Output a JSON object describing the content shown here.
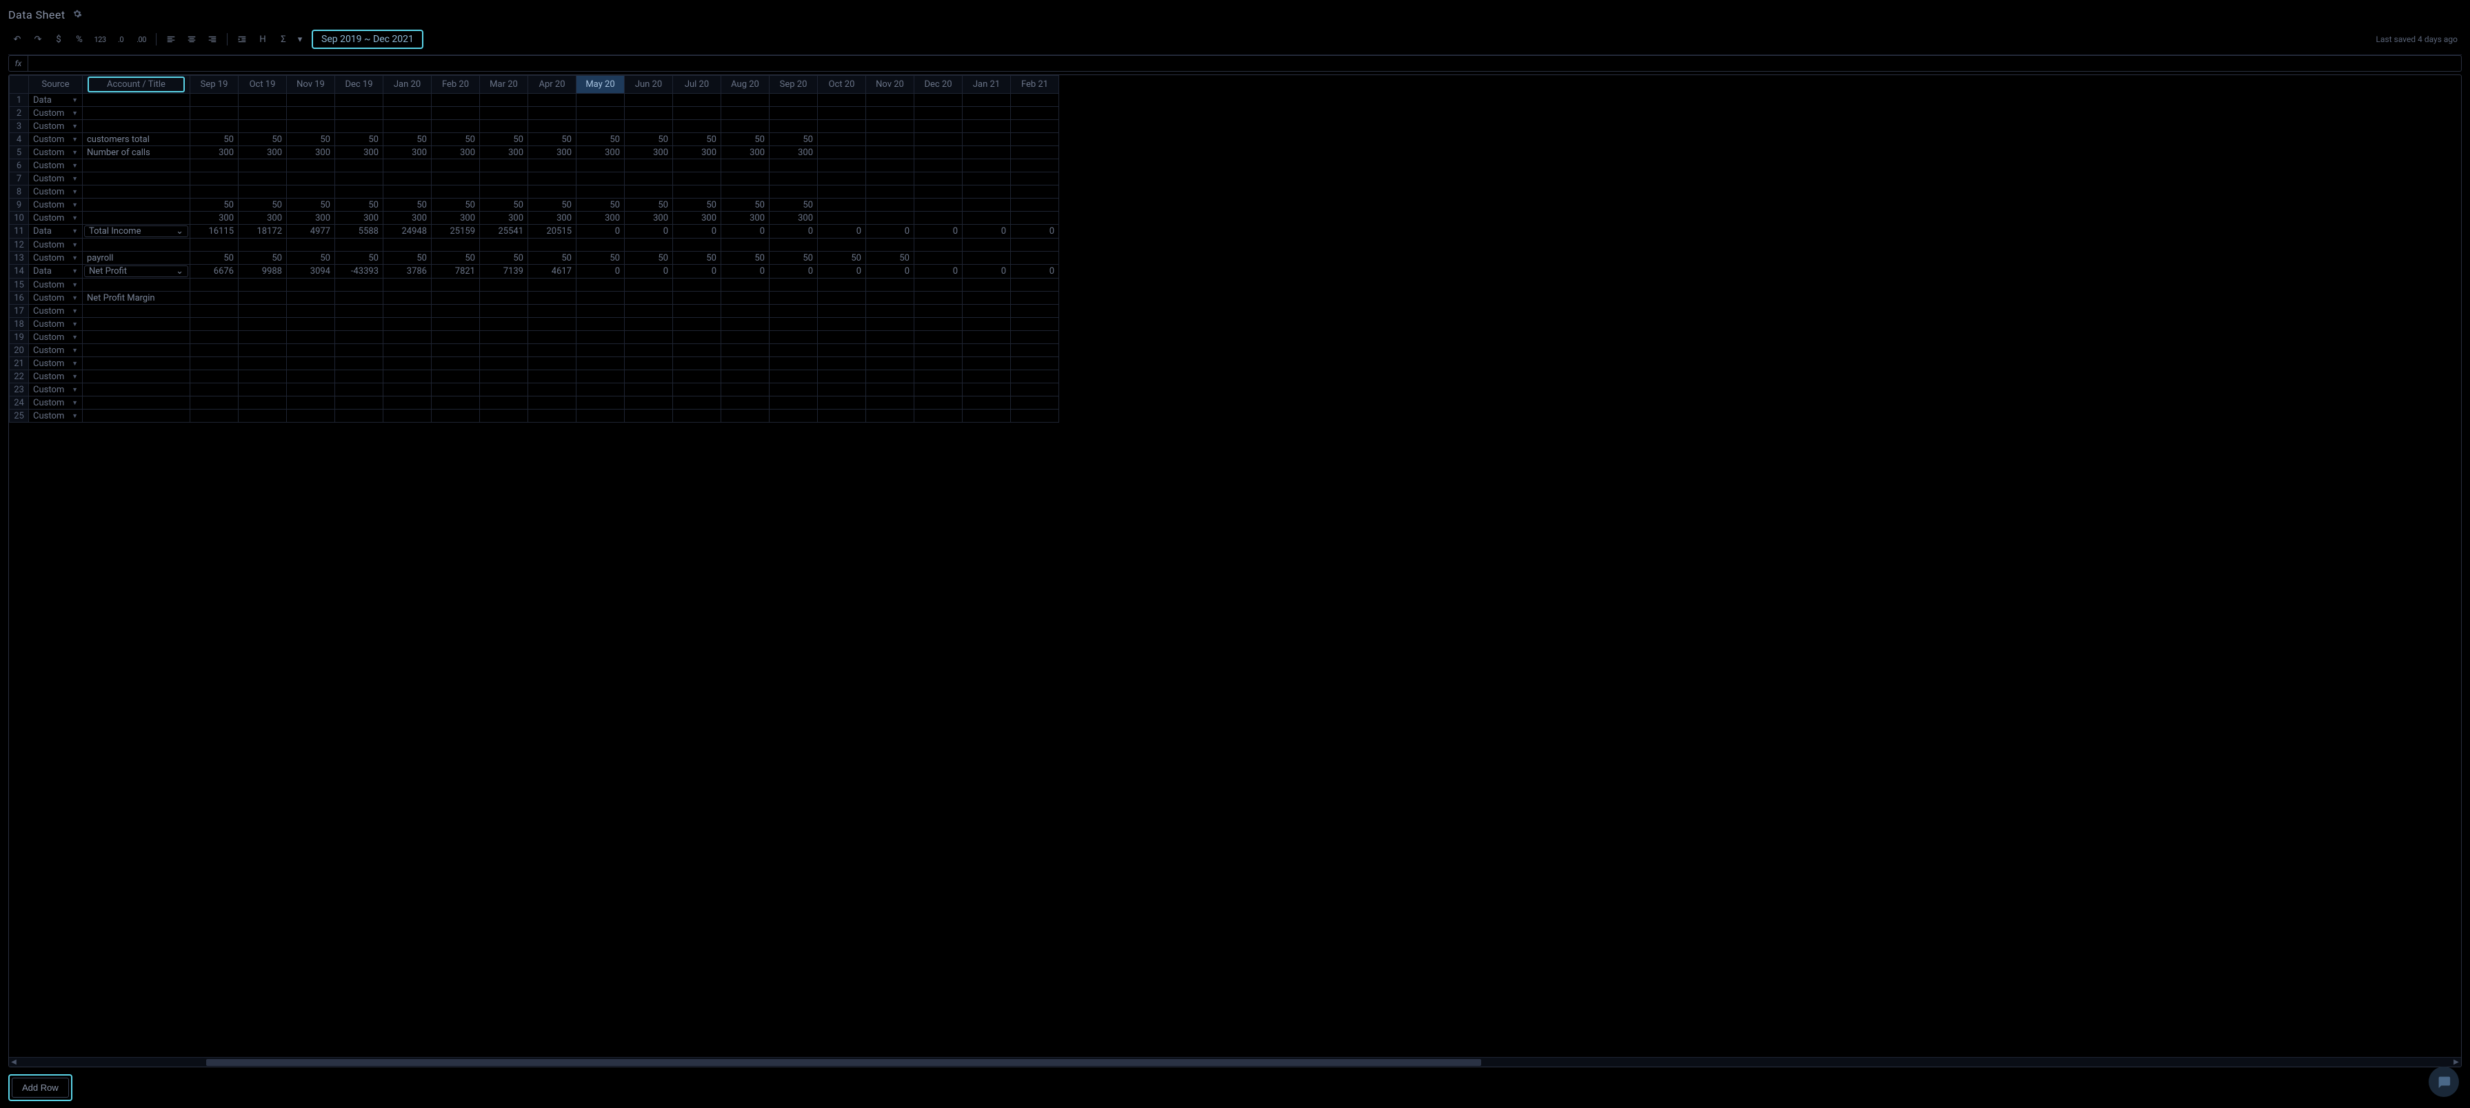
{
  "title": "Data Sheet",
  "dateRange": "Sep 2019 ~ Dec 2021",
  "lastSaved": "Last saved 4 days ago",
  "addRowLabel": "Add Row",
  "fxLabel": "fx",
  "headers": {
    "source": "Source",
    "accountTitle": "Account / Title"
  },
  "toolbar": {
    "undo": "↶",
    "redo": "↷",
    "currency": "$",
    "percent": "%",
    "num123": "123",
    "decDec": ".0",
    "incDec": ".00",
    "alignL": "≡",
    "alignC": "≡",
    "alignR": "≡",
    "indent": "⇥",
    "header": "H",
    "sum": "Σ",
    "caret": "▾"
  },
  "months": [
    "Sep 19",
    "Oct 19",
    "Nov 19",
    "Dec 19",
    "Jan 20",
    "Feb 20",
    "Mar 20",
    "Apr 20",
    "May 20",
    "Jun 20",
    "Jul 20",
    "Aug 20",
    "Sep 20",
    "Oct 20",
    "Nov 20",
    "Dec 20",
    "Jan 21",
    "Feb 21"
  ],
  "highlightedMonthIndex": 8,
  "rows": [
    {
      "n": 1,
      "source": "Data",
      "title": "",
      "dropdown": false,
      "vals": []
    },
    {
      "n": 2,
      "source": "Custom",
      "title": "",
      "dropdown": false,
      "vals": []
    },
    {
      "n": 3,
      "source": "Custom",
      "title": "",
      "dropdown": false,
      "vals": []
    },
    {
      "n": 4,
      "source": "Custom",
      "title": "customers total",
      "dropdown": false,
      "vals": [
        "50",
        "50",
        "50",
        "50",
        "50",
        "50",
        "50",
        "50",
        "50",
        "50",
        "50",
        "50",
        "50",
        "",
        "",
        "",
        "",
        ""
      ]
    },
    {
      "n": 5,
      "source": "Custom",
      "title": "Number of calls",
      "dropdown": false,
      "vals": [
        "300",
        "300",
        "300",
        "300",
        "300",
        "300",
        "300",
        "300",
        "300",
        "300",
        "300",
        "300",
        "300",
        "",
        "",
        "",
        "",
        ""
      ]
    },
    {
      "n": 6,
      "source": "Custom",
      "title": "",
      "dropdown": false,
      "vals": []
    },
    {
      "n": 7,
      "source": "Custom",
      "title": "",
      "dropdown": false,
      "vals": []
    },
    {
      "n": 8,
      "source": "Custom",
      "title": "",
      "dropdown": false,
      "vals": []
    },
    {
      "n": 9,
      "source": "Custom",
      "title": "",
      "dropdown": false,
      "vals": [
        "50",
        "50",
        "50",
        "50",
        "50",
        "50",
        "50",
        "50",
        "50",
        "50",
        "50",
        "50",
        "50",
        "",
        "",
        "",
        "",
        ""
      ]
    },
    {
      "n": 10,
      "source": "Custom",
      "title": "",
      "dropdown": false,
      "vals": [
        "300",
        "300",
        "300",
        "300",
        "300",
        "300",
        "300",
        "300",
        "300",
        "300",
        "300",
        "300",
        "300",
        "",
        "",
        "",
        "",
        ""
      ]
    },
    {
      "n": 11,
      "source": "Data",
      "title": "Total Income",
      "dropdown": true,
      "vals": [
        "16115",
        "18172",
        "4977",
        "5588",
        "24948",
        "25159",
        "25541",
        "20515",
        "0",
        "0",
        "0",
        "0",
        "0",
        "0",
        "0",
        "0",
        "0",
        "0"
      ]
    },
    {
      "n": 12,
      "source": "Custom",
      "title": "",
      "dropdown": false,
      "vals": []
    },
    {
      "n": 13,
      "source": "Custom",
      "title": "payroll",
      "dropdown": false,
      "vals": [
        "50",
        "50",
        "50",
        "50",
        "50",
        "50",
        "50",
        "50",
        "50",
        "50",
        "50",
        "50",
        "50",
        "50",
        "50",
        "",
        "",
        ""
      ]
    },
    {
      "n": 14,
      "source": "Data",
      "title": "Net Profit",
      "dropdown": true,
      "vals": [
        "6676",
        "9988",
        "3094",
        "-43393",
        "3786",
        "7821",
        "7139",
        "4617",
        "0",
        "0",
        "0",
        "0",
        "0",
        "0",
        "0",
        "0",
        "0",
        "0"
      ]
    },
    {
      "n": 15,
      "source": "Custom",
      "title": "",
      "dropdown": false,
      "vals": []
    },
    {
      "n": 16,
      "source": "Custom",
      "title": "Net Profit Margin",
      "dropdown": false,
      "vals": []
    },
    {
      "n": 17,
      "source": "Custom",
      "title": "",
      "dropdown": false,
      "vals": []
    },
    {
      "n": 18,
      "source": "Custom",
      "title": "",
      "dropdown": false,
      "vals": []
    },
    {
      "n": 19,
      "source": "Custom",
      "title": "",
      "dropdown": false,
      "vals": []
    },
    {
      "n": 20,
      "source": "Custom",
      "title": "",
      "dropdown": false,
      "vals": []
    },
    {
      "n": 21,
      "source": "Custom",
      "title": "",
      "dropdown": false,
      "vals": []
    },
    {
      "n": 22,
      "source": "Custom",
      "title": "",
      "dropdown": false,
      "vals": []
    },
    {
      "n": 23,
      "source": "Custom",
      "title": "",
      "dropdown": false,
      "vals": []
    },
    {
      "n": 24,
      "source": "Custom",
      "title": "",
      "dropdown": false,
      "vals": []
    },
    {
      "n": 25,
      "source": "Custom",
      "title": "",
      "dropdown": false,
      "vals": []
    }
  ]
}
